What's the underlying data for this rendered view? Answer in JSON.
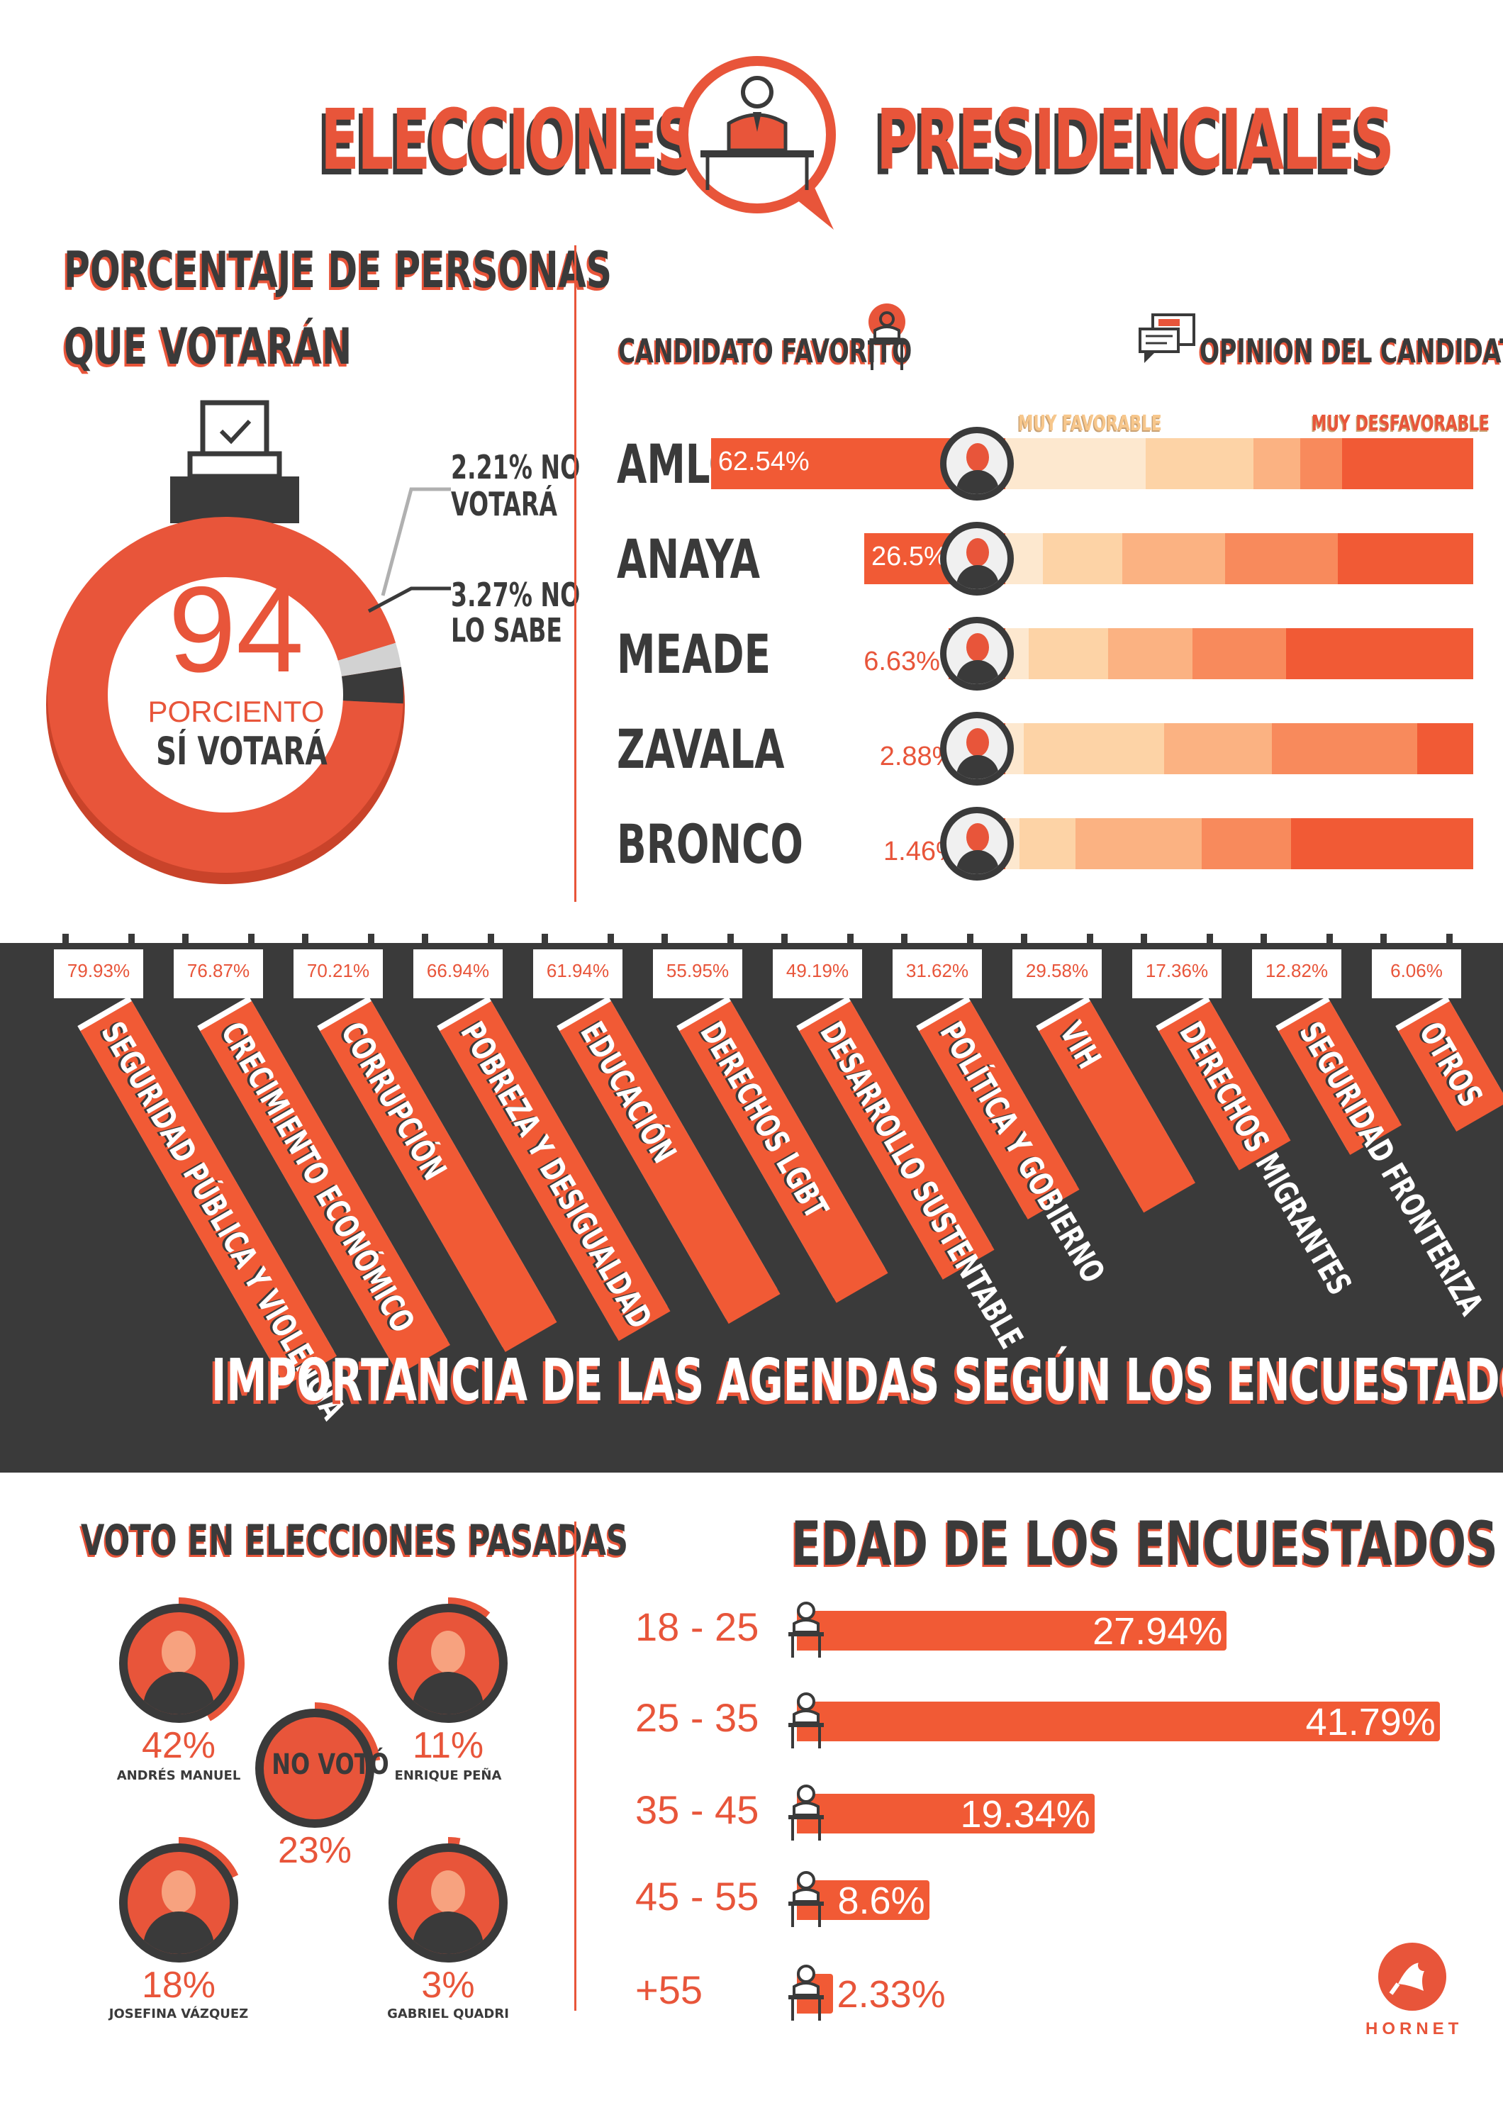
{
  "title": {
    "left": "ELECCIONES",
    "right": "PRESIDENCIALES"
  },
  "colors": {
    "accent": "#f15a35",
    "dark": "#3a3a3a",
    "opinion": [
      "#fde8cf",
      "#fdd3a6",
      "#fbb282",
      "#f88a5c",
      "#f15a35"
    ]
  },
  "turnout": {
    "heading_line1": "PORCENTAJE DE PERSONAS",
    "heading_line2": "QUE VOTARÁN",
    "big_number": "94",
    "big_sub1": "PORCIENTO",
    "big_sub2": "SÍ VOTARÁ",
    "no_votara_1": "2.21% NO",
    "no_votara_2": "VOTARÁ",
    "no_sabe_1": "3.27% NO",
    "no_sabe_2": "LO SABE"
  },
  "candidates": {
    "favorite_label": "CANDIDATO FAVORITO",
    "opinion_label": "OPINION DEL CANDIDATO",
    "muy_favorable": "MUY FAVORABLE",
    "muy_desfavorable": "MUY DESFAVORABLE"
  },
  "agendas": {
    "title": "IMPORTANCIA DE LAS AGENDAS SEGÚN LOS ENCUESTADOS"
  },
  "past_votes": {
    "heading": "VOTO EN ELECCIONES PASADAS",
    "no_voto_label": "NO VOTÓ",
    "items": [
      {
        "pct": "42%",
        "name": "ANDRÉS MANUEL"
      },
      {
        "pct": "11%",
        "name": "ENRIQUE PEÑA"
      },
      {
        "pct": "23%",
        "name": ""
      },
      {
        "pct": "18%",
        "name": "JOSEFINA VÁZQUEZ"
      },
      {
        "pct": "3%",
        "name": "GABRIEL QUADRI"
      }
    ]
  },
  "ages": {
    "heading": "EDAD DE LOS ENCUESTADOS"
  },
  "brand": "HORNET",
  "chart_data": [
    {
      "type": "pie",
      "categories": [
        "SÍ VOTARÁ",
        "NO VOTARÁ",
        "NO LO SABE"
      ],
      "values": [
        94,
        2.21,
        3.27
      ]
    },
    {
      "type": "bar",
      "title": "CANDIDATO FAVORITO",
      "categories": [
        "AMLO",
        "ANAYA",
        "MEADE",
        "ZAVALA",
        "BRONCO"
      ],
      "values": [
        62.54,
        26.5,
        6.63,
        2.88,
        1.46
      ],
      "labels": [
        "62.54%",
        "26.5%",
        "6.63%",
        "2.88%",
        "1.46%"
      ]
    },
    {
      "type": "bar",
      "title": "OPINION DEL CANDIDATO",
      "categories": [
        "AMLO",
        "ANAYA",
        "MEADE",
        "ZAVALA",
        "BRONCO"
      ],
      "series": [
        {
          "name": "MUY FAVORABLE",
          "values": [
            30,
            8,
            5,
            4,
            3
          ]
        },
        {
          "name": "",
          "values": [
            23,
            17,
            17,
            30,
            12
          ]
        },
        {
          "name": "",
          "values": [
            10,
            22,
            18,
            23,
            27
          ]
        },
        {
          "name": "",
          "values": [
            9,
            24,
            20,
            31,
            19
          ]
        },
        {
          "name": "MUY DESFAVORABLE",
          "values": [
            28,
            29,
            40,
            12,
            39
          ]
        }
      ]
    },
    {
      "type": "bar",
      "title": "IMPORTANCIA DE LAS AGENDAS SEGÚN LOS ENCUESTADOS",
      "categories": [
        "SEGURIDAD PÚBLICA Y VIOLENCIA",
        "CRECIMIENTO ECONÓMICO",
        "CORRUPCIÓN",
        "POBREZA Y DESIGUALDAD",
        "EDUCACIÓN",
        "DERECHOS LGBT",
        "DESARROLLO SUSTENTABLE",
        "POLÍTICA Y GOBIERNO",
        "VIH",
        "DERECHOS MIGRANTES",
        "SEGURIDAD FRONTERIZA",
        "OTROS"
      ],
      "values": [
        79.93,
        76.87,
        70.21,
        66.94,
        61.94,
        55.95,
        49.19,
        31.62,
        29.58,
        17.36,
        12.82,
        6.06
      ],
      "labels": [
        "79.93%",
        "76.87%",
        "70.21%",
        "66.94%",
        "61.94%",
        "55.95%",
        "49.19%",
        "31.62%",
        "29.58%",
        "17.36%",
        "12.82%",
        "6.06%"
      ]
    },
    {
      "type": "pie",
      "title": "VOTO EN ELECCIONES PASADAS",
      "categories": [
        "ANDRÉS MANUEL",
        "ENRIQUE PEÑA",
        "NO VOTÓ",
        "JOSEFINA VÁZQUEZ",
        "GABRIEL QUADRI"
      ],
      "values": [
        42,
        11,
        23,
        18,
        3
      ]
    },
    {
      "type": "bar",
      "title": "EDAD DE LOS ENCUESTADOS",
      "categories": [
        "18 - 25",
        "25 - 35",
        "35 - 45",
        "45 - 55",
        "+55"
      ],
      "values": [
        27.94,
        41.79,
        19.34,
        8.6,
        2.33
      ],
      "labels": [
        "27.94%",
        "41.79%",
        "19.34%",
        "8.6%",
        "2.33%"
      ]
    }
  ]
}
